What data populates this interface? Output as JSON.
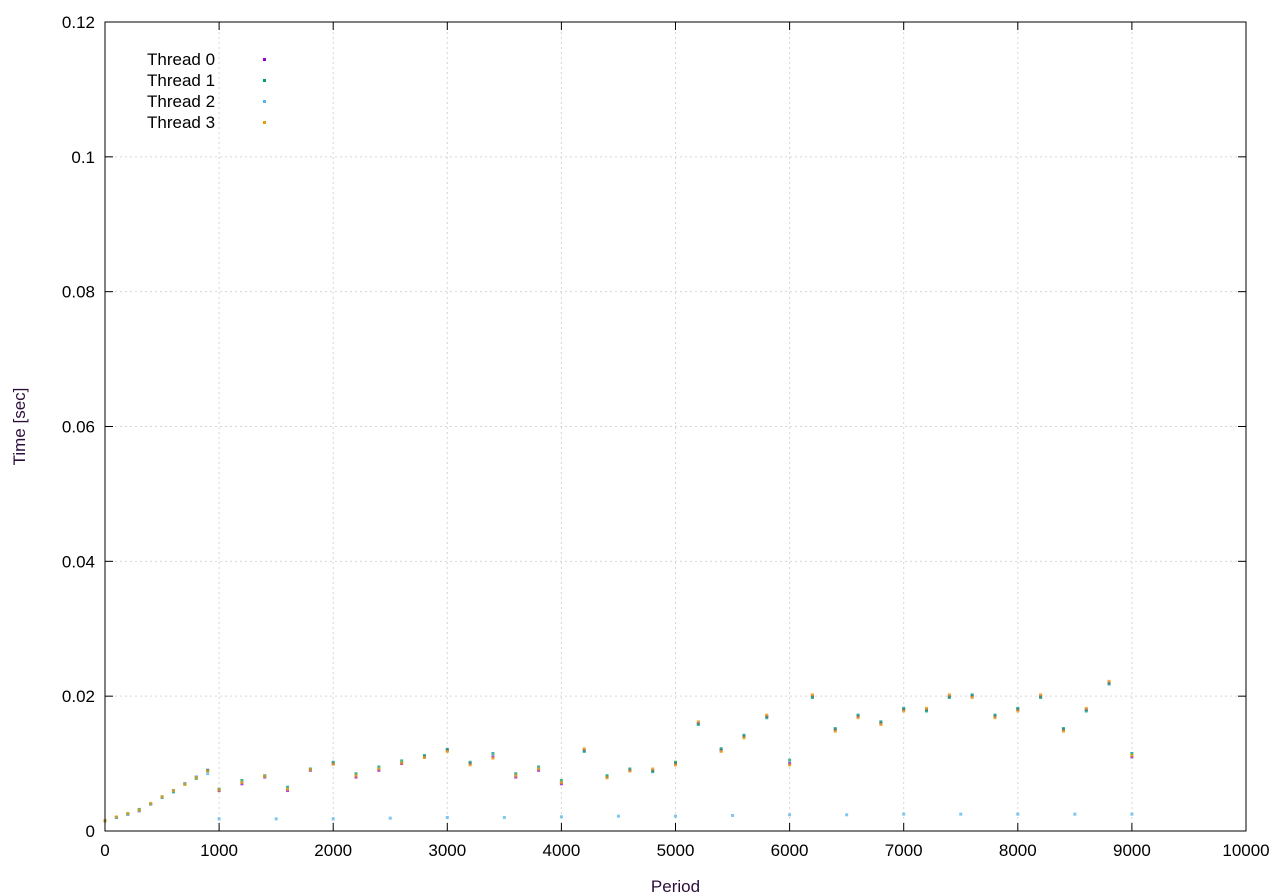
{
  "chart_data": {
    "type": "scatter",
    "title": "",
    "xlabel": "Period",
    "ylabel": "Time [sec]",
    "xlim": [
      0,
      10000
    ],
    "ylim": [
      0,
      0.12
    ],
    "x_ticks": [
      0,
      1000,
      2000,
      3000,
      4000,
      5000,
      6000,
      7000,
      8000,
      9000,
      10000
    ],
    "y_ticks": [
      0,
      0.02,
      0.04,
      0.06,
      0.08,
      0.1,
      0.12
    ],
    "x_tick_labels": [
      "0",
      "1000",
      "2000",
      "3000",
      "4000",
      "5000",
      "6000",
      "7000",
      "8000",
      "9000",
      "10000"
    ],
    "y_tick_labels": [
      "0",
      "0.02",
      "0.04",
      "0.06",
      "0.08",
      "0.1",
      "0.12"
    ],
    "grid": true,
    "legend_position": "top-left",
    "series": [
      {
        "name": "Thread 0",
        "color": "#9400d3",
        "marker": "point",
        "x": [
          0,
          100,
          200,
          300,
          400,
          500,
          600,
          700,
          800,
          900,
          1000,
          1200,
          1400,
          1600,
          1800,
          2000,
          2200,
          2400,
          2600,
          2800,
          3000,
          3200,
          3400,
          3600,
          3800,
          4000,
          4200,
          4400,
          4600,
          4800,
          5000,
          5200,
          5400,
          5600,
          5800,
          6000,
          6200,
          6400,
          6600,
          6800,
          7000,
          7200,
          7400,
          7600,
          7800,
          8000,
          8200,
          8400,
          8600,
          8800,
          9000
        ],
        "y": [
          0.0015,
          0.002,
          0.0025,
          0.003,
          0.004,
          0.005,
          0.006,
          0.007,
          0.008,
          0.009,
          0.006,
          0.007,
          0.008,
          0.006,
          0.009,
          0.01,
          0.008,
          0.009,
          0.01,
          0.011,
          0.012,
          0.01,
          0.011,
          0.008,
          0.009,
          0.007,
          0.012,
          0.008,
          0.009,
          0.009,
          0.01,
          0.016,
          0.012,
          0.014,
          0.017,
          0.01,
          0.02,
          0.015,
          0.017,
          0.016,
          0.018,
          0.018,
          0.02,
          0.02,
          0.017,
          0.018,
          0.02,
          0.015,
          0.018,
          0.022,
          0.011
        ]
      },
      {
        "name": "Thread 1",
        "color": "#009e73",
        "marker": "point",
        "x": [
          0,
          100,
          200,
          300,
          400,
          500,
          600,
          700,
          800,
          900,
          1000,
          1200,
          1400,
          1600,
          1800,
          2000,
          2200,
          2400,
          2600,
          2800,
          3000,
          3200,
          3400,
          3600,
          3800,
          4000,
          4200,
          4400,
          4600,
          4800,
          5000,
          5200,
          5400,
          5600,
          5800,
          6000,
          6200,
          6400,
          6600,
          6800,
          7000,
          7200,
          7400,
          7600,
          7800,
          8000,
          8200,
          8400,
          8600,
          8800,
          9000
        ],
        "y": [
          0.0015,
          0.002,
          0.0025,
          0.0032,
          0.004,
          0.005,
          0.0058,
          0.007,
          0.0078,
          0.009,
          0.0062,
          0.0075,
          0.0082,
          0.0065,
          0.0092,
          0.0102,
          0.0085,
          0.0095,
          0.0104,
          0.0112,
          0.0121,
          0.0102,
          0.0115,
          0.0085,
          0.0095,
          0.0075,
          0.0118,
          0.0082,
          0.0092,
          0.0088,
          0.0102,
          0.0158,
          0.0122,
          0.0142,
          0.0168,
          0.0105,
          0.0198,
          0.0152,
          0.0172,
          0.0162,
          0.0182,
          0.0178,
          0.0198,
          0.0202,
          0.0172,
          0.0182,
          0.0198,
          0.0152,
          0.0178,
          0.0218,
          0.0115
        ]
      },
      {
        "name": "Thread 2",
        "color": "#56b4e9",
        "marker": "point",
        "x": [
          0,
          100,
          200,
          300,
          400,
          500,
          600,
          700,
          800,
          900,
          1000,
          1500,
          2000,
          2500,
          3000,
          3500,
          4000,
          4500,
          5000,
          5500,
          6000,
          6500,
          7000,
          7500,
          8000,
          8500,
          9000
        ],
        "y": [
          0.0015,
          0.002,
          0.0025,
          0.003,
          0.004,
          0.005,
          0.006,
          0.007,
          0.008,
          0.0085,
          0.0018,
          0.0018,
          0.0018,
          0.0019,
          0.002,
          0.002,
          0.0021,
          0.0022,
          0.0022,
          0.0023,
          0.0024,
          0.0024,
          0.0025,
          0.0025,
          0.0025,
          0.0025,
          0.0025
        ]
      },
      {
        "name": "Thread 3",
        "color": "#e69f00",
        "marker": "point",
        "x": [
          0,
          100,
          200,
          300,
          400,
          500,
          600,
          700,
          800,
          900,
          1000,
          1200,
          1400,
          1600,
          1800,
          2000,
          2200,
          2400,
          2600,
          2800,
          3000,
          3200,
          3400,
          3600,
          3800,
          4000,
          4200,
          4400,
          4600,
          4800,
          5000,
          5200,
          5400,
          5600,
          5800,
          6000,
          6200,
          6400,
          6600,
          6800,
          7000,
          7200,
          7400,
          7600,
          7800,
          8000,
          8200,
          8400,
          8600,
          8800,
          9000
        ],
        "y": [
          0.0015,
          0.0021,
          0.0026,
          0.0031,
          0.0041,
          0.0051,
          0.006,
          0.0069,
          0.0079,
          0.0089,
          0.0061,
          0.0072,
          0.0081,
          0.0062,
          0.0091,
          0.0099,
          0.0082,
          0.0092,
          0.0101,
          0.0109,
          0.0118,
          0.0098,
          0.0108,
          0.0082,
          0.0092,
          0.0072,
          0.0122,
          0.0079,
          0.0089,
          0.0092,
          0.0098,
          0.0162,
          0.0118,
          0.0138,
          0.0172,
          0.0098,
          0.0202,
          0.0148,
          0.0168,
          0.0158,
          0.0178,
          0.0182,
          0.0202,
          0.0198,
          0.0168,
          0.0178,
          0.0202,
          0.0148,
          0.0182,
          0.0222,
          0.0112
        ]
      }
    ]
  }
}
